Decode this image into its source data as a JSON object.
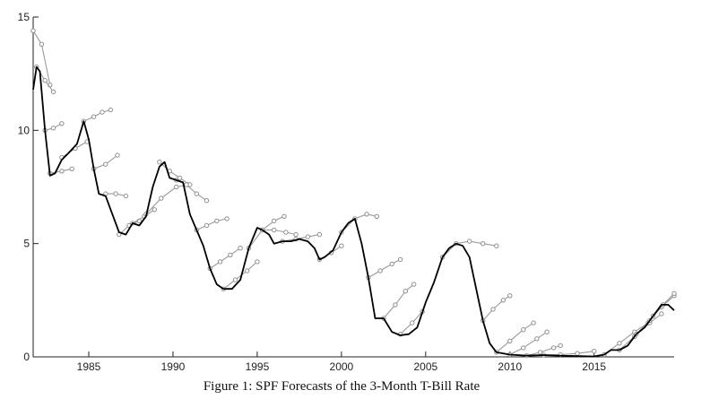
{
  "chart_data": {
    "type": "line",
    "title": "Figure 1: SPF Forecasts of the 3-Month T-Bill Rate",
    "xlabel": "",
    "ylabel": "",
    "xlim": [
      1981.7,
      2019.75
    ],
    "ylim": [
      0,
      15
    ],
    "xticks": [
      1985,
      1990,
      1995,
      2000,
      2005,
      2010,
      2015
    ],
    "yticks": [
      0,
      5,
      10,
      15
    ],
    "grid": false,
    "series": [
      {
        "role": "actual",
        "color": "#000000",
        "x": [
          1981.7,
          1981.9,
          1982.1,
          1982.4,
          1982.7,
          1983.0,
          1983.4,
          1983.8,
          1984.3,
          1984.7,
          1985.0,
          1985.3,
          1985.6,
          1986.0,
          1986.4,
          1986.8,
          1987.2,
          1987.6,
          1988.0,
          1988.4,
          1988.8,
          1989.2,
          1989.5,
          1989.8,
          1990.2,
          1990.6,
          1991.0,
          1991.4,
          1991.8,
          1992.2,
          1992.6,
          1993.0,
          1993.5,
          1994.0,
          1994.5,
          1995.0,
          1995.3,
          1995.7,
          1996.0,
          1996.5,
          1997.0,
          1997.5,
          1998.0,
          1998.4,
          1998.7,
          1999.0,
          1999.5,
          2000.0,
          2000.4,
          2000.8,
          2001.2,
          2001.6,
          2002.0,
          2002.5,
          2003.0,
          2003.5,
          2004.0,
          2004.5,
          2005.0,
          2005.5,
          2006.0,
          2006.4,
          2006.8,
          2007.2,
          2007.6,
          2008.0,
          2008.4,
          2008.8,
          2009.2,
          2010.0,
          2011.0,
          2012.0,
          2013.0,
          2014.0,
          2015.0,
          2015.6,
          2016.0,
          2016.5,
          2017.0,
          2017.5,
          2018.0,
          2018.5,
          2019.0,
          2019.4,
          2019.75
        ],
        "y": [
          11.8,
          12.8,
          12.6,
          10.0,
          8.0,
          8.1,
          8.7,
          9.0,
          9.4,
          10.4,
          9.6,
          8.3,
          7.2,
          7.1,
          6.3,
          5.5,
          5.4,
          5.9,
          5.8,
          6.2,
          7.5,
          8.4,
          8.6,
          7.9,
          7.8,
          7.7,
          6.3,
          5.6,
          4.9,
          3.9,
          3.2,
          3.0,
          3.0,
          3.4,
          4.8,
          5.7,
          5.6,
          5.4,
          5.0,
          5.1,
          5.1,
          5.2,
          5.1,
          4.8,
          4.3,
          4.4,
          4.7,
          5.5,
          5.9,
          6.1,
          5.0,
          3.5,
          1.7,
          1.7,
          1.1,
          0.95,
          1.0,
          1.3,
          2.4,
          3.3,
          4.4,
          4.8,
          5.0,
          4.9,
          4.4,
          3.0,
          1.6,
          0.6,
          0.2,
          0.1,
          0.05,
          0.08,
          0.05,
          0.03,
          0.02,
          0.1,
          0.3,
          0.3,
          0.5,
          1.0,
          1.3,
          1.8,
          2.3,
          2.3,
          2.05
        ]
      },
      {
        "role": "forecast",
        "x": [
          1981.7,
          1982.2,
          1982.7
        ],
        "y": [
          14.4,
          13.8,
          12.0
        ]
      },
      {
        "role": "forecast",
        "x": [
          1981.9,
          1982.4,
          1982.9
        ],
        "y": [
          12.8,
          12.2,
          11.7
        ]
      },
      {
        "role": "forecast",
        "x": [
          1982.4,
          1982.9,
          1983.4
        ],
        "y": [
          10.0,
          10.1,
          10.3
        ]
      },
      {
        "role": "forecast",
        "x": [
          1982.7,
          1983.4,
          1984.0
        ],
        "y": [
          8.1,
          8.2,
          8.3
        ]
      },
      {
        "role": "forecast",
        "x": [
          1983.4,
          1984.2,
          1984.9
        ],
        "y": [
          8.8,
          9.2,
          9.5
        ]
      },
      {
        "role": "forecast",
        "x": [
          1984.7,
          1985.3,
          1985.8,
          1986.3
        ],
        "y": [
          10.4,
          10.6,
          10.8,
          10.9
        ]
      },
      {
        "role": "forecast",
        "x": [
          1985.3,
          1986.0,
          1986.7
        ],
        "y": [
          8.3,
          8.5,
          8.9
        ]
      },
      {
        "role": "forecast",
        "x": [
          1986.0,
          1986.6,
          1987.2
        ],
        "y": [
          7.2,
          7.2,
          7.1
        ]
      },
      {
        "role": "forecast",
        "x": [
          1986.8,
          1987.4,
          1988.0
        ],
        "y": [
          5.4,
          5.8,
          6.0
        ]
      },
      {
        "role": "forecast",
        "x": [
          1987.6,
          1988.3,
          1988.9
        ],
        "y": [
          5.9,
          6.2,
          6.5
        ]
      },
      {
        "role": "forecast",
        "x": [
          1988.4,
          1989.3,
          1990.2,
          1990.9
        ],
        "y": [
          6.3,
          7.0,
          7.5,
          7.6
        ]
      },
      {
        "role": "forecast",
        "x": [
          1989.2,
          1989.8,
          1990.4,
          1991.0
        ],
        "y": [
          8.6,
          8.2,
          7.9,
          7.6
        ]
      },
      {
        "role": "forecast",
        "x": [
          1990.2,
          1990.8,
          1991.4,
          1992.0
        ],
        "y": [
          7.8,
          7.6,
          7.2,
          6.9
        ]
      },
      {
        "role": "forecast",
        "x": [
          1991.4,
          1992.0,
          1992.6,
          1993.2
        ],
        "y": [
          5.6,
          5.8,
          6.0,
          6.1
        ]
      },
      {
        "role": "forecast",
        "x": [
          1992.2,
          1992.8,
          1993.4,
          1994.0
        ],
        "y": [
          3.9,
          4.2,
          4.5,
          4.8
        ]
      },
      {
        "role": "forecast",
        "x": [
          1993.0,
          1993.7,
          1994.4,
          1995.0
        ],
        "y": [
          3.0,
          3.4,
          3.8,
          4.2
        ]
      },
      {
        "role": "forecast",
        "x": [
          1994.5,
          1995.3,
          1996.0,
          1996.6
        ],
        "y": [
          4.8,
          5.6,
          6.0,
          6.2
        ]
      },
      {
        "role": "forecast",
        "x": [
          1995.3,
          1996.0,
          1996.7,
          1997.3
        ],
        "y": [
          5.6,
          5.6,
          5.5,
          5.4
        ]
      },
      {
        "role": "forecast",
        "x": [
          1996.5,
          1997.3,
          1998.0,
          1998.7
        ],
        "y": [
          5.1,
          5.2,
          5.3,
          5.4
        ]
      },
      {
        "role": "forecast",
        "x": [
          1998.7,
          1999.4,
          2000.0
        ],
        "y": [
          4.3,
          4.6,
          4.9
        ]
      },
      {
        "role": "forecast",
        "x": [
          2000.0,
          2000.8,
          2001.5,
          2002.1
        ],
        "y": [
          5.5,
          6.1,
          6.3,
          6.2
        ]
      },
      {
        "role": "forecast",
        "x": [
          2001.6,
          2002.3,
          2003.0,
          2003.5
        ],
        "y": [
          3.5,
          3.8,
          4.1,
          4.3
        ]
      },
      {
        "role": "forecast",
        "x": [
          2002.5,
          2003.2,
          2003.8,
          2004.3
        ],
        "y": [
          1.7,
          2.3,
          2.9,
          3.2
        ]
      },
      {
        "role": "forecast",
        "x": [
          2003.5,
          2004.2,
          2004.8
        ],
        "y": [
          1.0,
          1.5,
          2.0
        ]
      },
      {
        "role": "forecast",
        "x": [
          2006.0,
          2006.8,
          2007.6,
          2008.4,
          2009.2
        ],
        "y": [
          4.4,
          5.0,
          5.1,
          5.0,
          4.9
        ]
      },
      {
        "role": "forecast",
        "x": [
          2008.4,
          2009.0,
          2009.6,
          2010.0
        ],
        "y": [
          1.6,
          2.1,
          2.5,
          2.7
        ]
      },
      {
        "role": "forecast",
        "x": [
          2009.2,
          2010.0,
          2010.8,
          2011.4
        ],
        "y": [
          0.2,
          0.7,
          1.2,
          1.5
        ]
      },
      {
        "role": "forecast",
        "x": [
          2010.0,
          2010.8,
          2011.6,
          2012.2
        ],
        "y": [
          0.1,
          0.4,
          0.8,
          1.1
        ]
      },
      {
        "role": "forecast",
        "x": [
          2011.0,
          2011.8,
          2012.6,
          2013.0
        ],
        "y": [
          0.05,
          0.2,
          0.4,
          0.5
        ]
      },
      {
        "role": "forecast",
        "x": [
          2012.0,
          2013.0,
          2014.0,
          2015.0
        ],
        "y": [
          0.08,
          0.1,
          0.15,
          0.25
        ]
      },
      {
        "role": "forecast",
        "x": [
          2015.6,
          2016.5,
          2017.4,
          2018.2
        ],
        "y": [
          0.1,
          0.6,
          1.1,
          1.5
        ]
      },
      {
        "role": "forecast",
        "x": [
          2016.5,
          2017.4,
          2018.3,
          2019.0
        ],
        "y": [
          0.3,
          0.9,
          1.5,
          1.9
        ]
      },
      {
        "role": "forecast",
        "x": [
          2017.5,
          2018.3,
          2019.0,
          2019.75
        ],
        "y": [
          1.0,
          1.6,
          2.2,
          2.7
        ]
      },
      {
        "role": "forecast",
        "x": [
          2018.5,
          2019.1,
          2019.75
        ],
        "y": [
          1.8,
          2.3,
          2.8
        ]
      }
    ]
  }
}
